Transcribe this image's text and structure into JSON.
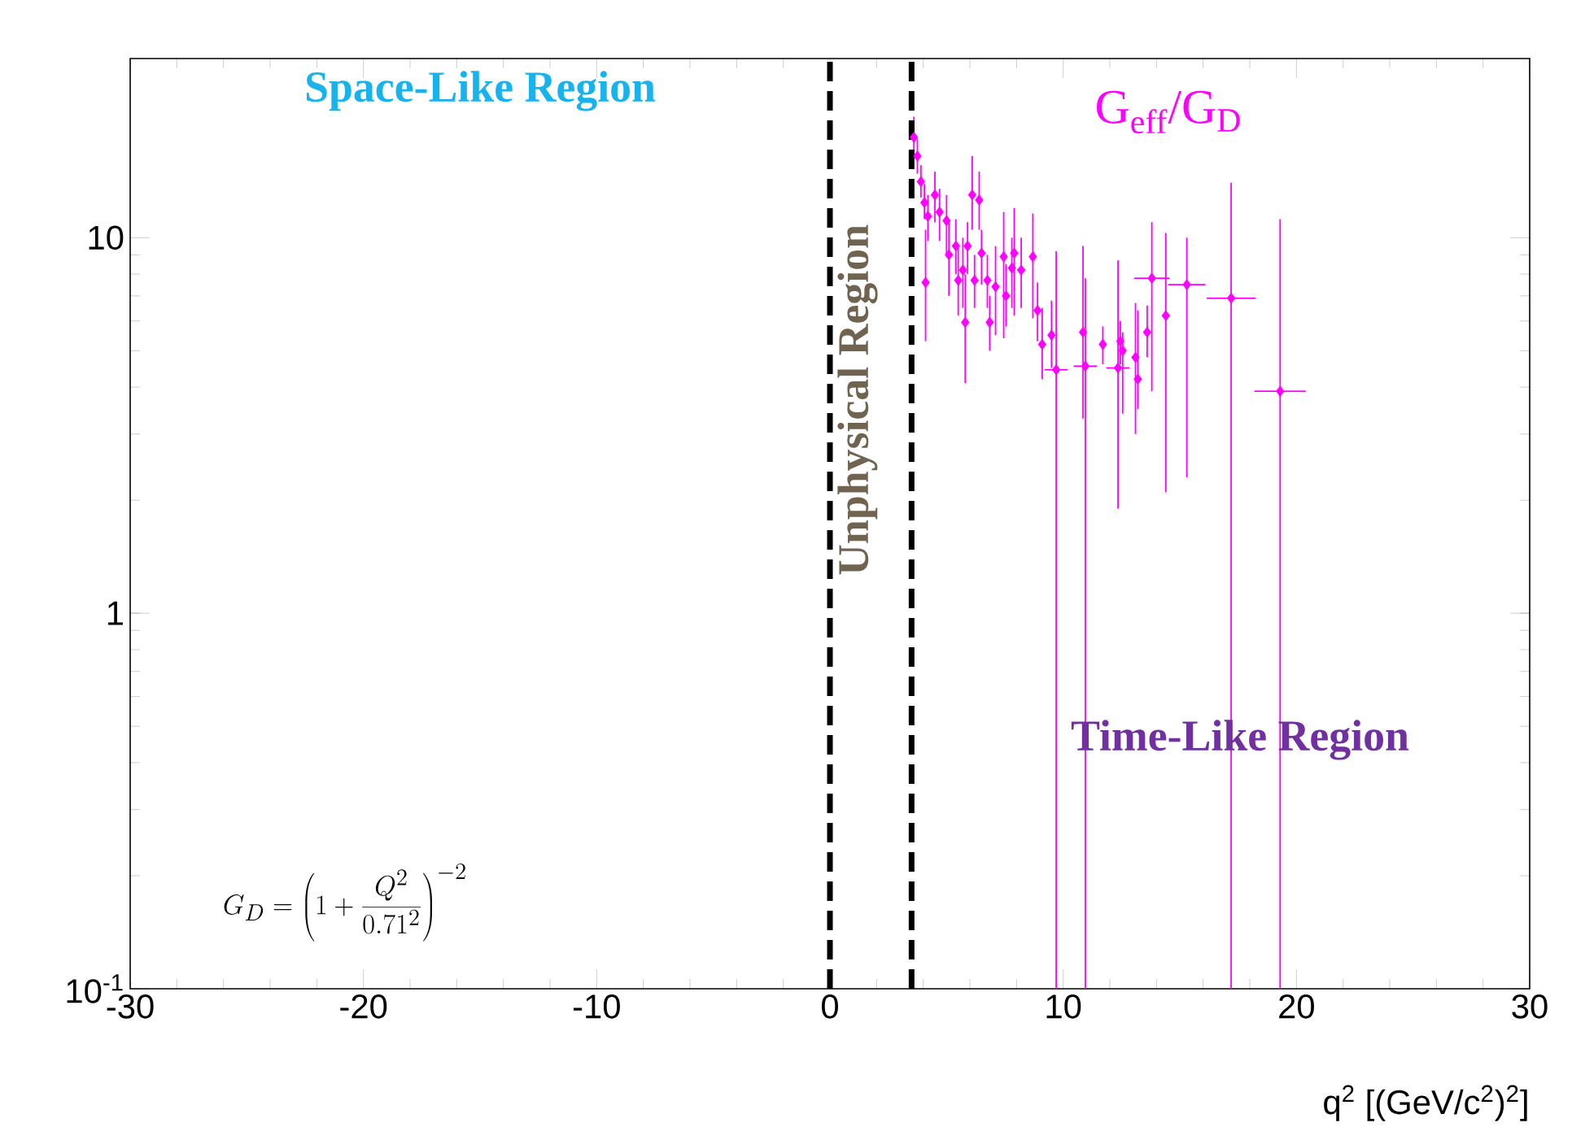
{
  "chart_data": {
    "type": "scatter",
    "xlabel": "q$^{2}$ [(GeV/c$^{2}$)$^{2}$]",
    "xlim": [
      -30,
      30
    ],
    "xticks": [
      -30,
      -20,
      -10,
      0,
      10,
      20,
      30
    ],
    "ylim": [
      0.1,
      30
    ],
    "yticks": [
      {
        "value": 0.1,
        "label": "10$^{-1}$"
      },
      1,
      10
    ],
    "log": "y",
    "marker": "diamond",
    "annotations": [
      "Space-Like Region",
      "Unphysical Region",
      "Time-Like Region",
      "G_{D} = \\left(1+\\frac{Q^{2}}{0.71^{2}}\\right)^{-2}"
    ],
    "ref_lines": [
      {
        "axis": "x",
        "value": 0,
        "color": "#000000",
        "line_style": "dashed"
      },
      {
        "axis": "x",
        "value": 3.5,
        "color": "#000000",
        "line_style": "dashed"
      }
    ],
    "series": [
      {
        "name": "G$_{eff}$/G$_{D}$",
        "color": "#ff00ff",
        "x": [
          3.6,
          3.75,
          3.9,
          4.05,
          4.2,
          4.1,
          4.5,
          4.7,
          5.0,
          5.1,
          5.4,
          5.5,
          5.7,
          5.8,
          5.9,
          6.1,
          6.4,
          6.2,
          6.5,
          6.75,
          6.85,
          7.1,
          7.45,
          7.55,
          7.9,
          7.8,
          8.2,
          8.7,
          8.9,
          9.1,
          9.5,
          9.7,
          10.85,
          10.95,
          11.7,
          12.35,
          12.45,
          12.55,
          13.1,
          13.2,
          13.6,
          13.8,
          14.4,
          15.3,
          17.2,
          19.3
        ],
        "values": [
          18.5,
          16.5,
          14.1,
          12.4,
          11.4,
          7.6,
          13.0,
          11.7,
          11.1,
          9.0,
          9.5,
          7.7,
          8.2,
          5.95,
          9.5,
          13.0,
          12.6,
          7.7,
          9.1,
          7.7,
          5.95,
          7.4,
          8.9,
          7.0,
          9.1,
          8.3,
          8.2,
          8.9,
          6.4,
          5.2,
          5.5,
          4.45,
          5.6,
          4.55,
          5.2,
          4.5,
          5.3,
          5.0,
          4.8,
          4.2,
          5.6,
          7.8,
          6.2,
          7.5,
          6.9,
          3.9
        ],
        "errors": [
          [
            16.5,
            21
          ],
          [
            14.8,
            18.3
          ],
          [
            12.8,
            15.6
          ],
          [
            11.2,
            13.9
          ],
          [
            9.8,
            13.0
          ],
          [
            5.3,
            10.5
          ],
          [
            11,
            15
          ],
          [
            9.8,
            13.5
          ],
          [
            9.0,
            13.0
          ],
          [
            7.0,
            11.0
          ],
          [
            8,
            11.2
          ],
          [
            6.2,
            9.4
          ],
          [
            6.5,
            10
          ],
          [
            4.1,
            8.0
          ],
          [
            8,
            11
          ],
          [
            10.5,
            16.5
          ],
          [
            10.5,
            15
          ],
          [
            6.5,
            9.0
          ],
          [
            7.5,
            10.5
          ],
          [
            6.5,
            9
          ],
          [
            5.0,
            7.0
          ],
          [
            5.5,
            9.5
          ],
          [
            5.4,
            11.7
          ],
          [
            5.8,
            8.5
          ],
          [
            6.2,
            12
          ],
          [
            6.5,
            10
          ],
          [
            6.5,
            10
          ],
          [
            6.1,
            11.6
          ],
          [
            5.3,
            7.6
          ],
          [
            4.2,
            6.5
          ],
          [
            4.5,
            6.8
          ],
          [
            0.1,
            9.2
          ],
          [
            3.3,
            9.5
          ],
          [
            0.1,
            7.8
          ],
          [
            4.6,
            5.8
          ],
          [
            1.9,
            8.7
          ],
          [
            4.6,
            6.0
          ],
          [
            3.4,
            5.6
          ],
          [
            3.0,
            6.7
          ],
          [
            3.5,
            6.4
          ],
          [
            4.8,
            6.6
          ],
          [
            3.9,
            11
          ],
          [
            2.1,
            10.3
          ],
          [
            2.3,
            10
          ],
          [
            0.1,
            14
          ],
          [
            0.1,
            11.2
          ]
        ],
        "xerrors": [
          null,
          null,
          null,
          null,
          null,
          null,
          null,
          null,
          null,
          null,
          null,
          null,
          null,
          null,
          null,
          null,
          null,
          null,
          null,
          null,
          null,
          null,
          null,
          null,
          null,
          null,
          null,
          null,
          null,
          null,
          null,
          0.5,
          null,
          0.5,
          null,
          0.5,
          null,
          null,
          null,
          null,
          null,
          0.75,
          null,
          0.8,
          1.05,
          1.1
        ]
      }
    ]
  }
}
